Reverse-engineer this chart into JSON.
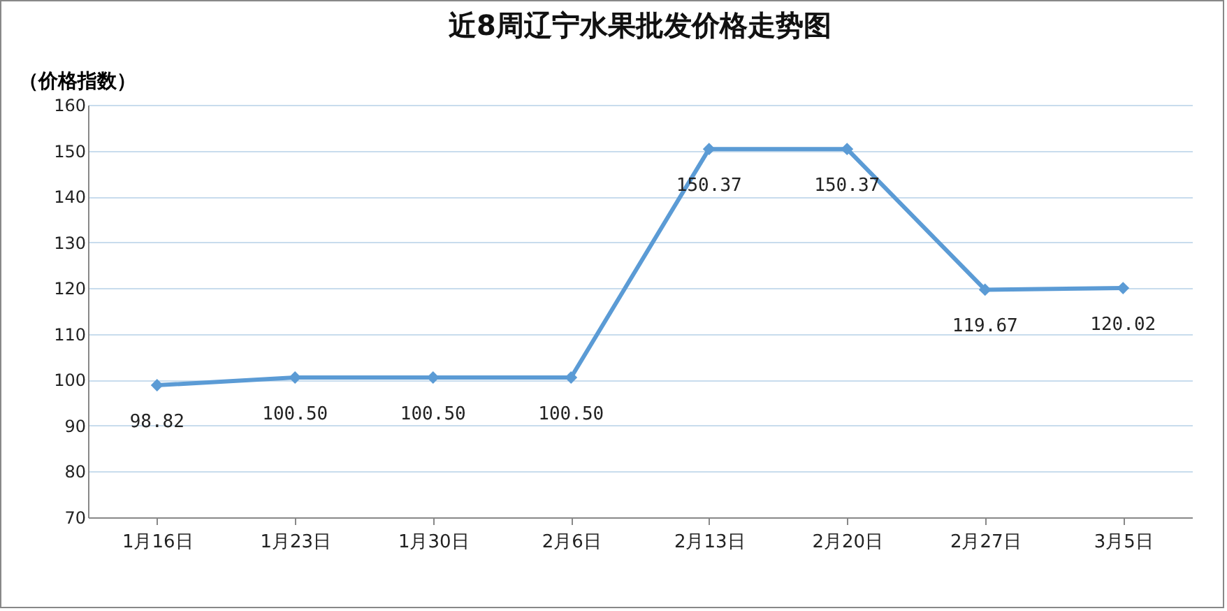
{
  "chart_data": {
    "type": "line",
    "title": "近8周辽宁水果批发价格走势图",
    "ylabel": "（价格指数）",
    "categories": [
      "1月16日",
      "1月23日",
      "1月30日",
      "2月6日",
      "2月13日",
      "2月20日",
      "2月27日",
      "3月5日"
    ],
    "series": [
      {
        "color": "#5b9bd5",
        "values": [
          98.82,
          100.5,
          100.5,
          100.5,
          150.37,
          150.37,
          119.67,
          120.02
        ],
        "value_labels": [
          "98.82",
          "100.50",
          "100.50",
          "100.50",
          "150.37",
          "150.37",
          "119.67",
          "120.02"
        ]
      }
    ],
    "ylim": [
      70,
      160
    ],
    "yticks": [
      70,
      80,
      90,
      100,
      110,
      120,
      130,
      140,
      150,
      160
    ],
    "grid": "y",
    "marker": "diamond",
    "line_style": "solid"
  }
}
